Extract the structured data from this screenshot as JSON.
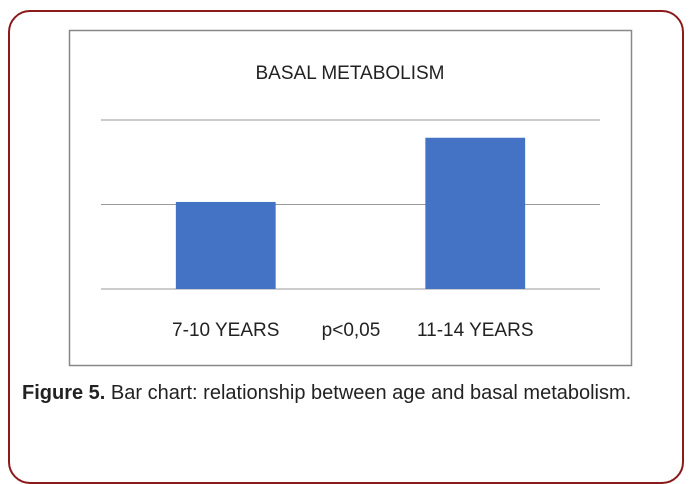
{
  "chart_data": {
    "type": "bar",
    "title": "BASAL METABOLISM",
    "categories": [
      "7-10 YEARS",
      "11-14 YEARS"
    ],
    "values": [
      1.03,
      1.79
    ],
    "color": "#4472c4",
    "annotation": "p<0,05",
    "ylim": [
      0,
      2
    ],
    "yticks": [
      0,
      1,
      2
    ],
    "grid": true
  },
  "caption": {
    "label": "Figure 5.",
    "text": " Bar chart: relationship between age and basal metabolism."
  }
}
